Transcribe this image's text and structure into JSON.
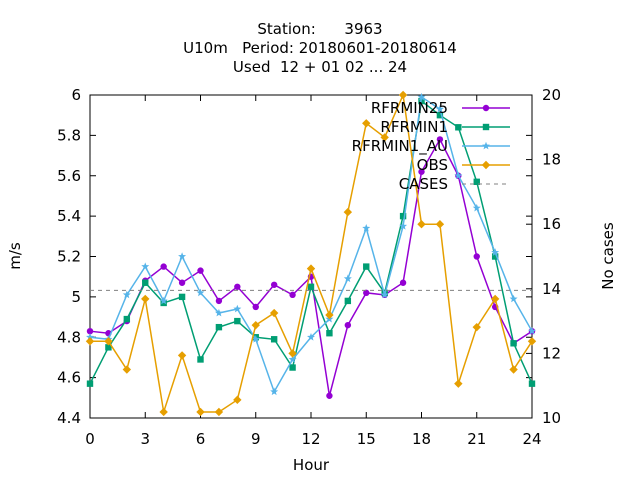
{
  "title_lines": [
    "Station:      3963",
    "U10m   Period: 20180601-20180614",
    "Used  12 + 01 02 ... 24"
  ],
  "chart_data": {
    "type": "line",
    "xlabel": "Hour",
    "ylabel": "m/s",
    "y2label": "No cases",
    "xlim": [
      0,
      24
    ],
    "ylim": [
      4.4,
      6.0
    ],
    "y2lim": [
      10,
      20
    ],
    "xticks": [
      "0",
      "3",
      "6",
      "9",
      "12",
      "15",
      "18",
      "21",
      "24"
    ],
    "yticks": [
      "4.4",
      "4.6",
      "4.8",
      "5",
      "5.2",
      "5.4",
      "5.6",
      "5.8",
      "6"
    ],
    "y2ticks": [
      "10",
      "12",
      "14",
      "16",
      "18",
      "20"
    ],
    "grid": false,
    "legend_position": "top-right",
    "x": [
      0,
      1,
      2,
      3,
      4,
      5,
      6,
      7,
      8,
      9,
      10,
      11,
      12,
      13,
      14,
      15,
      16,
      17,
      18,
      19,
      20,
      21,
      22,
      23,
      24
    ],
    "series": [
      {
        "name": "RFRMIN25",
        "color": "#9400d3",
        "marker": "circle",
        "values": [
          4.83,
          4.82,
          4.88,
          5.08,
          5.15,
          5.07,
          5.13,
          4.98,
          5.05,
          4.95,
          5.06,
          5.01,
          5.1,
          4.51,
          4.86,
          5.02,
          5.01,
          5.07,
          5.62,
          5.78,
          5.6,
          5.2,
          4.95,
          4.77,
          4.83
        ]
      },
      {
        "name": "RFRMIN1",
        "color": "#009e73",
        "marker": "square",
        "values": [
          4.57,
          4.75,
          4.89,
          5.07,
          4.97,
          5.0,
          4.69,
          4.85,
          4.88,
          4.8,
          4.79,
          4.65,
          5.05,
          4.82,
          4.98,
          5.15,
          5.02,
          5.4,
          5.97,
          5.9,
          5.84,
          5.57,
          5.2,
          4.77,
          4.57
        ]
      },
      {
        "name": "RFRMIN1_AU",
        "color": "#56b4e9",
        "marker": "star",
        "values": [
          4.8,
          4.79,
          5.01,
          5.15,
          4.98,
          5.2,
          5.02,
          4.92,
          4.94,
          4.79,
          4.53,
          4.69,
          4.8,
          4.89,
          5.09,
          5.34,
          5.01,
          5.35,
          5.99,
          5.93,
          5.6,
          5.44,
          5.22,
          4.99,
          4.83
        ]
      },
      {
        "name": "OBS",
        "color": "#e69f00",
        "marker": "diamond",
        "values": [
          4.78,
          4.78,
          4.64,
          4.99,
          4.43,
          4.71,
          4.43,
          4.43,
          4.49,
          4.86,
          4.92,
          4.72,
          5.14,
          4.91,
          5.42,
          5.86,
          5.79,
          6.0,
          5.36,
          5.36,
          4.57,
          4.85,
          4.99,
          4.64,
          4.78
        ]
      },
      {
        "name": "CASES",
        "color": "#808080",
        "axis": "y2",
        "style": "dashed",
        "values": [
          13.95,
          13.95,
          13.95,
          13.95,
          13.95,
          13.95,
          13.95,
          13.95,
          13.95,
          13.95,
          13.95,
          13.95,
          13.95,
          13.95,
          13.95,
          13.95,
          13.95,
          13.95,
          13.95,
          13.95,
          13.95,
          13.95,
          13.95,
          13.95,
          13.95
        ]
      }
    ]
  }
}
